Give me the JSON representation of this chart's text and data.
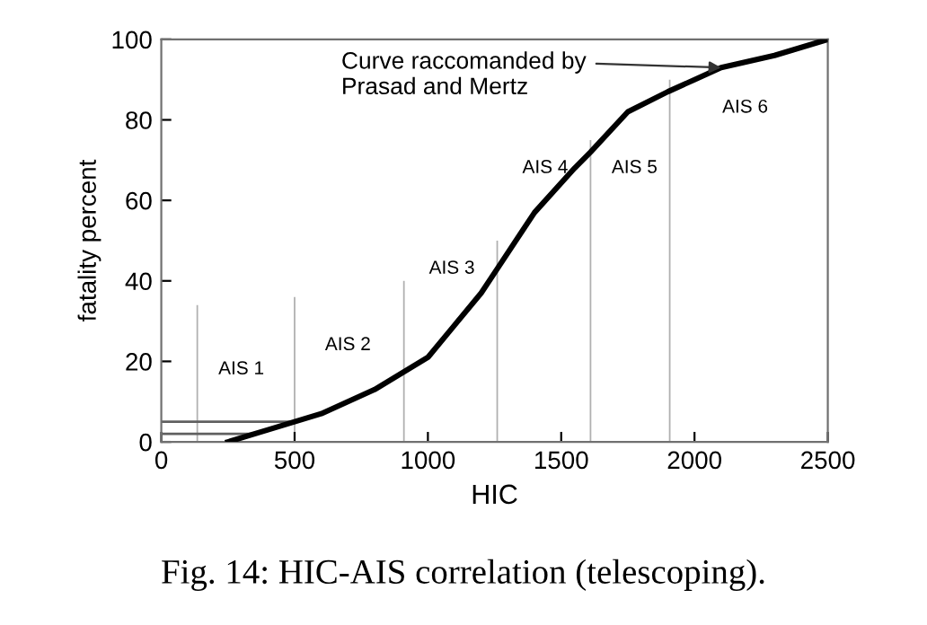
{
  "chart_data": {
    "type": "line",
    "xlabel": "HIC",
    "ylabel": "fatality percent",
    "xlim": [
      0,
      2500
    ],
    "ylim": [
      0,
      100
    ],
    "xticks": [
      0,
      500,
      1000,
      1500,
      2000,
      2500
    ],
    "yticks": [
      0,
      20,
      40,
      60,
      80,
      100
    ],
    "grid": false,
    "legend": false,
    "marker": "none",
    "line_style": "solid",
    "series": [
      {
        "color": "#000000",
        "x": [
          250,
          400,
          500,
          600,
          700,
          800,
          900,
          1000,
          1100,
          1200,
          1260,
          1400,
          1550,
          1610,
          1750,
          1900,
          2000,
          2100,
          2300,
          2500
        ],
        "values": [
          0,
          3,
          5,
          7,
          10,
          13,
          17,
          21,
          29,
          37,
          43,
          57,
          68,
          72,
          82,
          87,
          90,
          93,
          96,
          100
        ]
      },
      {
        "type": "bar",
        "color": "#b0b0b0",
        "x": [
          135,
          500,
          910,
          1260,
          1610,
          1907
        ],
        "values": [
          34,
          36,
          40,
          50,
          75,
          90
        ]
      },
      {
        "type": "line",
        "color": "#606060",
        "x": [
          0,
          500
        ],
        "values": [
          5,
          5
        ]
      },
      {
        "type": "line",
        "color": "#606060",
        "x": [
          0,
          350
        ],
        "values": [
          2,
          2
        ]
      }
    ],
    "annotations": [
      {
        "text": "Curve raccomanded by\nPrasad and Mertz",
        "x": 2100,
        "y": 93
      },
      "AIS 1",
      "AIS 2",
      "AIS 3",
      "AIS 4",
      "AIS 5",
      "AIS 6",
      "Fig. 14: HIC-AIS correlation (telescoping)."
    ]
  }
}
